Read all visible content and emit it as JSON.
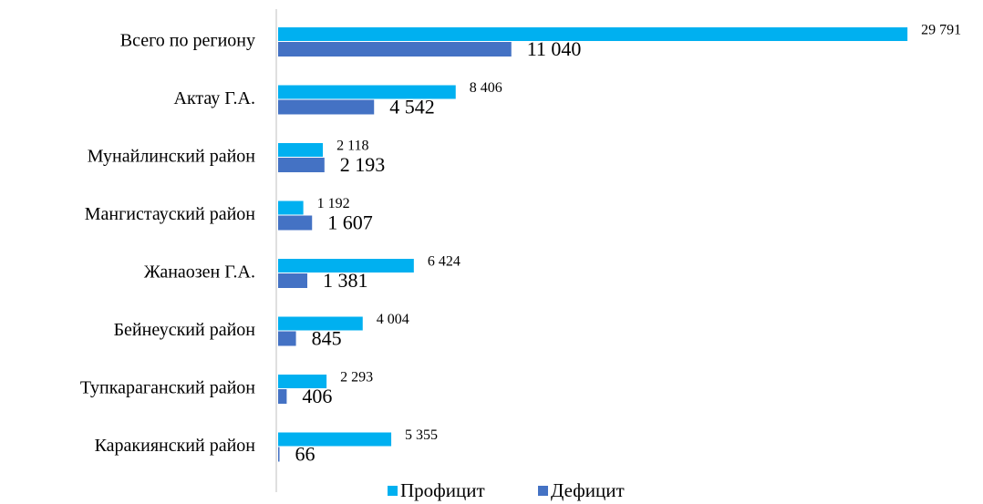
{
  "chart_data": {
    "type": "barh",
    "categories": [
      "Всего по региону",
      "Актау Г.А.",
      "Мунайлинский район",
      "Мангистауский район",
      "Жанаозен Г.А.",
      "Бейнеуский район",
      "Тупкараганский район",
      "Каракиянский район"
    ],
    "series": [
      {
        "name": "Профицит",
        "color": "#00b0f0",
        "values": [
          29791,
          8406,
          2118,
          1192,
          6424,
          4004,
          2293,
          5355
        ],
        "value_labels": [
          "29 791",
          "8 406",
          "2 118",
          "1 192",
          "6 424",
          "4 004",
          "2 293",
          "5 355"
        ]
      },
      {
        "name": "Дефицит",
        "color": "#4472c4",
        "values": [
          11040,
          4542,
          2193,
          1607,
          1381,
          845,
          406,
          66
        ],
        "value_labels": [
          "11 040",
          "4 542",
          "2 193",
          "1 607",
          "1 381",
          "845",
          "406",
          "66"
        ]
      }
    ],
    "xlim": [
      0,
      30000
    ],
    "legend": "bottom"
  }
}
